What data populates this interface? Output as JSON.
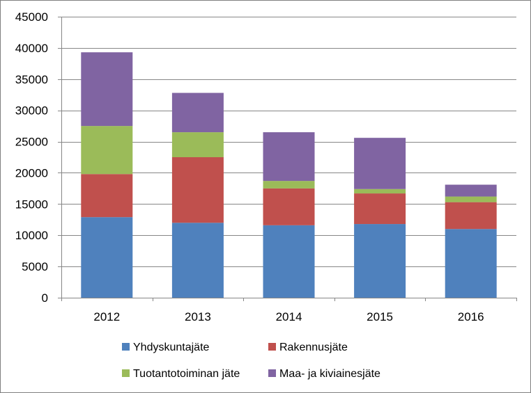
{
  "chart_data": {
    "type": "bar",
    "stacked": true,
    "categories": [
      "2012",
      "2013",
      "2014",
      "2015",
      "2016"
    ],
    "series": [
      {
        "name": "Yhdyskuntajäte",
        "color": "#4f81bd",
        "values": [
          12900,
          12000,
          11600,
          11800,
          11000
        ]
      },
      {
        "name": "Rakennusjäte",
        "color": "#c0504d",
        "values": [
          6900,
          10500,
          5900,
          4900,
          4300
        ]
      },
      {
        "name": "Tuotantotoiminan jäte",
        "color": "#9bbb59",
        "values": [
          7700,
          4000,
          1200,
          700,
          900
        ]
      },
      {
        "name": "Maa- ja kiviainesjäte",
        "color": "#8064a2",
        "values": [
          11800,
          6300,
          7800,
          8200,
          1900
        ]
      }
    ],
    "ylim": [
      0,
      45000
    ],
    "yticks": [
      "0",
      "5000",
      "10000",
      "15000",
      "20000",
      "25000",
      "30000",
      "35000",
      "40000",
      "45000"
    ],
    "grid": true,
    "legend_position": "bottom",
    "title": "",
    "xlabel": "",
    "ylabel": ""
  }
}
